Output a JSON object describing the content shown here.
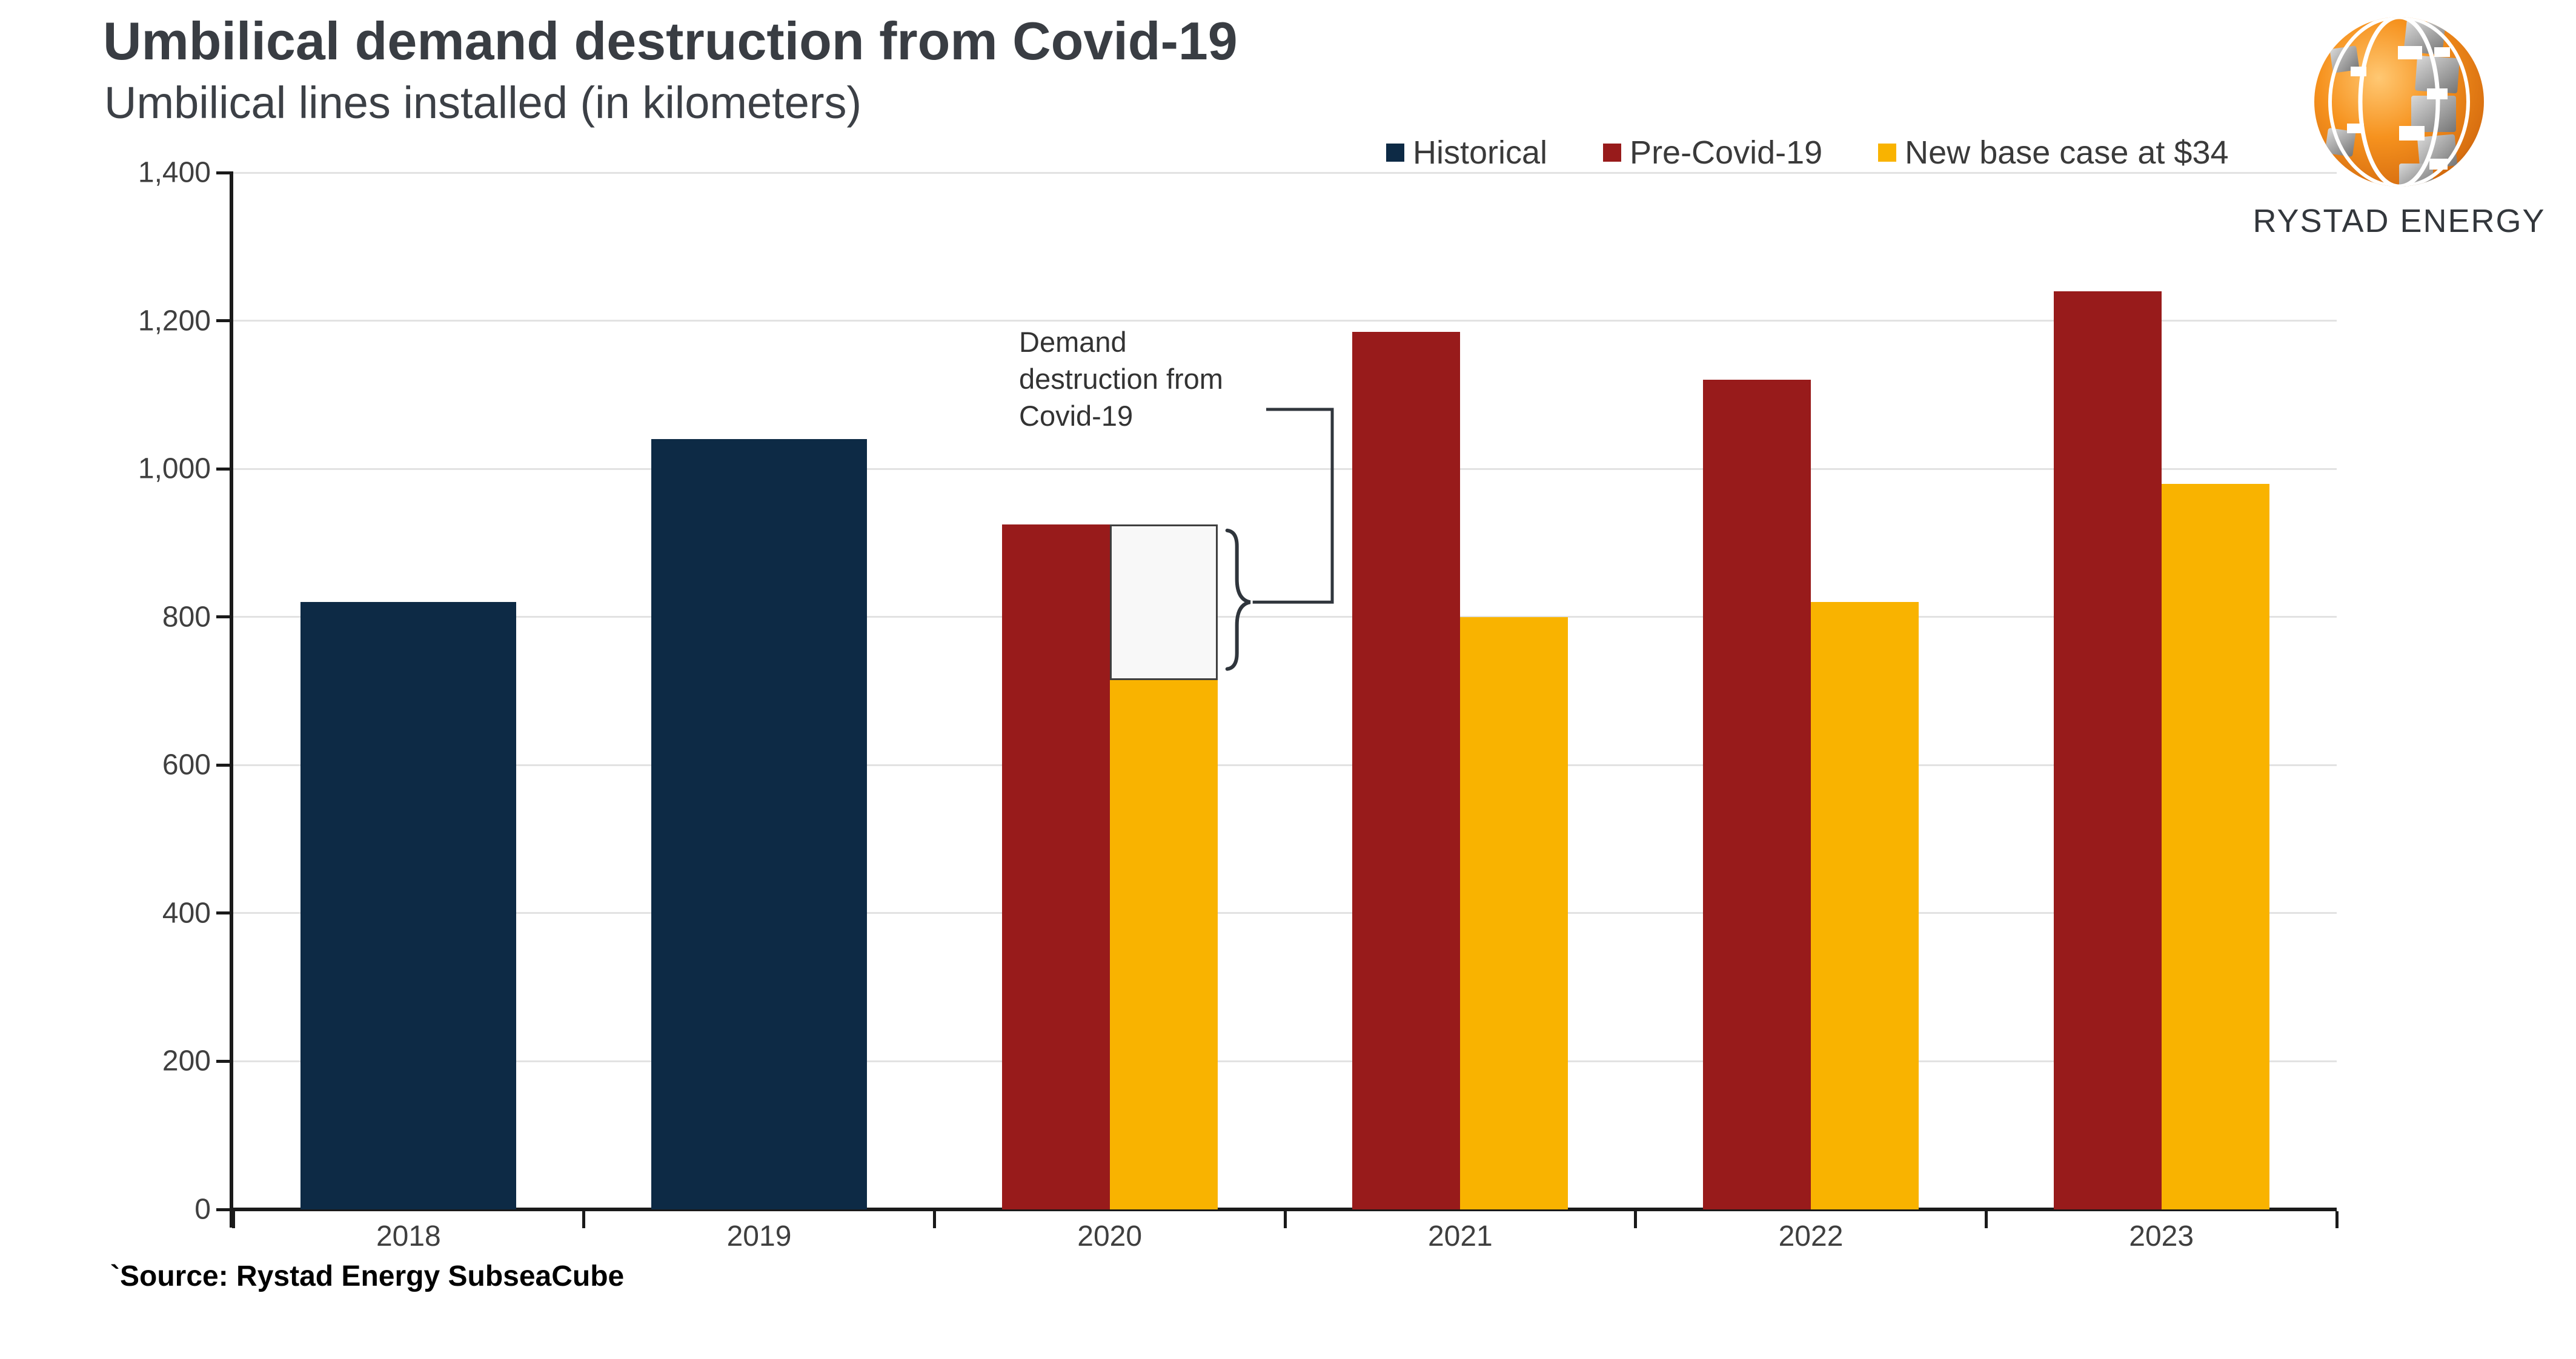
{
  "header": {
    "title": "Umbilical demand destruction from Covid-19",
    "subtitle": "Umbilical lines installed (in kilometers)"
  },
  "branding": {
    "name": "RYSTAD ENERGY"
  },
  "footer": {
    "source": "`Source: Rystad Energy SubseaCube"
  },
  "chart_data": {
    "type": "bar",
    "title": "Umbilical demand destruction from Covid-19",
    "subtitle": "Umbilical lines installed (in kilometers)",
    "categories": [
      "2018",
      "2019",
      "2020",
      "2021",
      "2022",
      "2023"
    ],
    "series": [
      {
        "name": "Historical",
        "color": "#0d2a45",
        "values": [
          820,
          1040,
          null,
          null,
          null,
          null
        ]
      },
      {
        "name": "Pre-Covid-19",
        "color": "#981b1b",
        "values": [
          null,
          null,
          925,
          1185,
          1120,
          1240
        ]
      },
      {
        "name": "New base case at $34",
        "color": "#f9b300",
        "values": [
          null,
          null,
          715,
          800,
          820,
          980
        ]
      }
    ],
    "ylim": [
      0,
      1400
    ],
    "ytick_step": 200,
    "grid": true,
    "legend_position": "top-right",
    "annotation": {
      "category": "2020",
      "from_series": "Pre-Covid-19",
      "to_series": "New base case at $34",
      "text": "Demand\ndestruction from\nCovid-19"
    }
  }
}
